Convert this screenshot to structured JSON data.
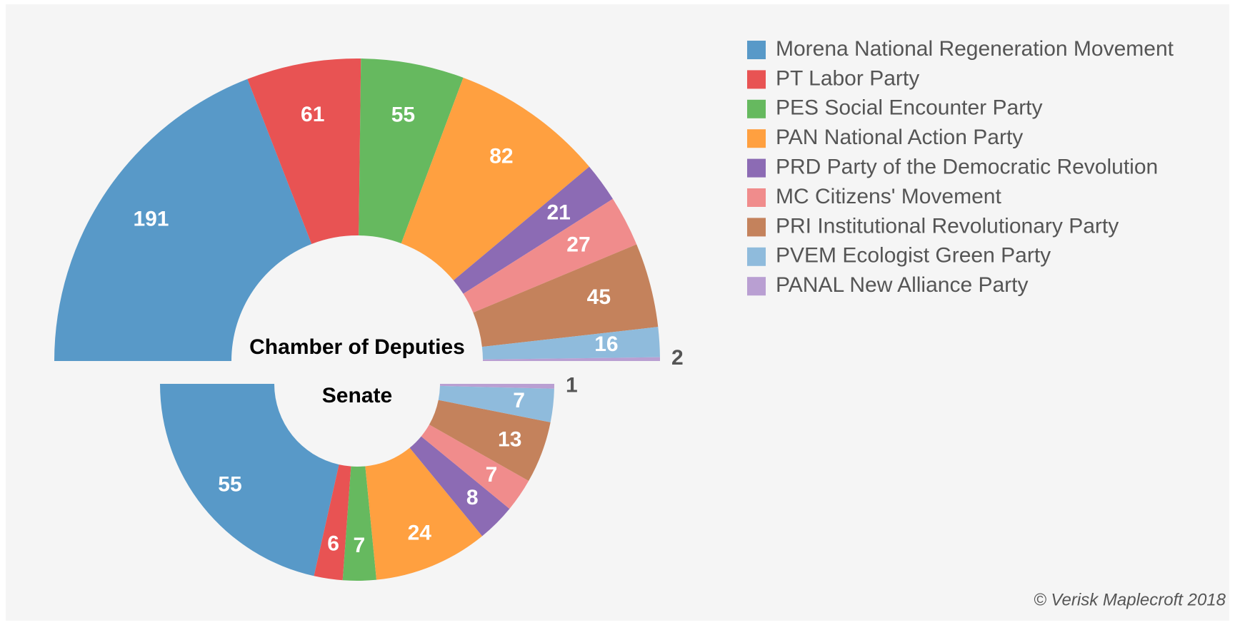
{
  "chart_data": [
    {
      "type": "semi-donut",
      "half": "upper",
      "title": "Chamber of Deputies",
      "categories": [
        "Morena National Regeneration Movement",
        "PT Labor Party",
        "PES Social Encounter Party",
        "PAN National Action Party",
        "PRD Party of the Democratic Revolution",
        "MC Citizens' Movement",
        "PRI Institutional Revolutionary Party",
        "PVEM Ecologist Green Party",
        "PANAL  New Alliance Party"
      ],
      "values": [
        191,
        61,
        55,
        82,
        21,
        27,
        45,
        16,
        2
      ],
      "colors": [
        "#5899c8",
        "#e85353",
        "#66b95f",
        "#ffa040",
        "#8c6bb4",
        "#f08c8c",
        "#c4825c",
        "#8fbbdc",
        "#b99fd2"
      ],
      "legend": "top-right"
    },
    {
      "type": "semi-donut",
      "half": "lower",
      "title": "Senate",
      "categories": [
        "Morena National Regeneration Movement",
        "PT Labor Party",
        "PES Social Encounter Party",
        "PAN National Action Party",
        "PRD Party of the Democratic Revolution",
        "MC Citizens' Movement",
        "PRI Institutional Revolutionary Party",
        "PVEM Ecologist Green Party",
        "PANAL  New Alliance Party"
      ],
      "values": [
        55,
        6,
        7,
        24,
        8,
        7,
        13,
        7,
        1
      ],
      "colors": [
        "#5899c8",
        "#e85353",
        "#66b95f",
        "#ffa040",
        "#8c6bb4",
        "#f08c8c",
        "#c4825c",
        "#8fbbdc",
        "#b99fd2"
      ]
    }
  ],
  "credit": "© Verisk Maplecroft 2018"
}
